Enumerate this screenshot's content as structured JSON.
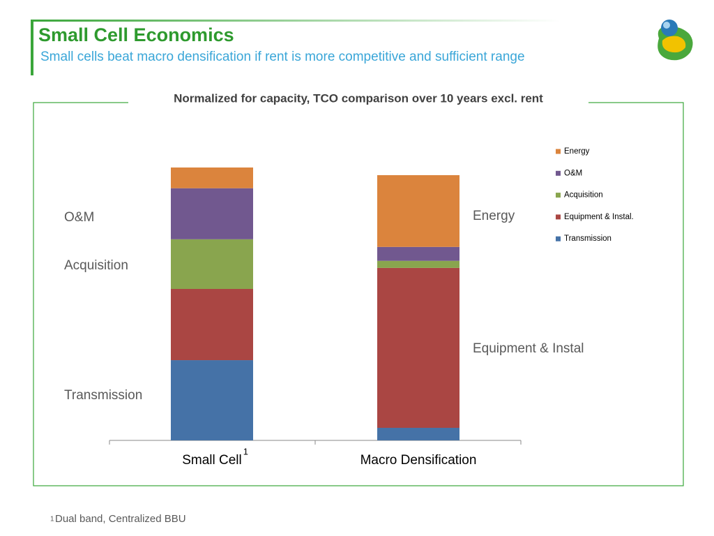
{
  "slide": {
    "title": "Small Cell Economics",
    "subtitle": "Small cells beat macro densification if rent is more competitive and sufficient range",
    "footnote_marker": "1",
    "footnote": "Dual band, Centralized BBU"
  },
  "chart_data": {
    "type": "stacked_bar",
    "title": "Normalized for capacity, TCO comparison over 10 years excl. rent",
    "categories": [
      "Small Cell",
      "Macro Densification"
    ],
    "category_superscripts": [
      "1",
      null
    ],
    "series": [
      {
        "name": "Transmission",
        "color": "#4572a7",
        "values": [
          29.4,
          4.6
        ]
      },
      {
        "name": "Equipment & Instal.",
        "color": "#aa4643",
        "values": [
          26.1,
          58.6
        ]
      },
      {
        "name": "Acquisition",
        "color": "#89a54e",
        "values": [
          18.2,
          2.6
        ]
      },
      {
        "name": "O&M",
        "color": "#71588f",
        "values": [
          18.7,
          5.1
        ]
      },
      {
        "name": "Energy",
        "color": "#db843d",
        "values": [
          7.6,
          26.3
        ]
      }
    ],
    "ylim": [
      0,
      100
    ],
    "legend": "right",
    "annotations": [
      "O&M",
      "Acquisition",
      "Transmission",
      "Energy",
      "Equipment & Instal"
    ]
  }
}
